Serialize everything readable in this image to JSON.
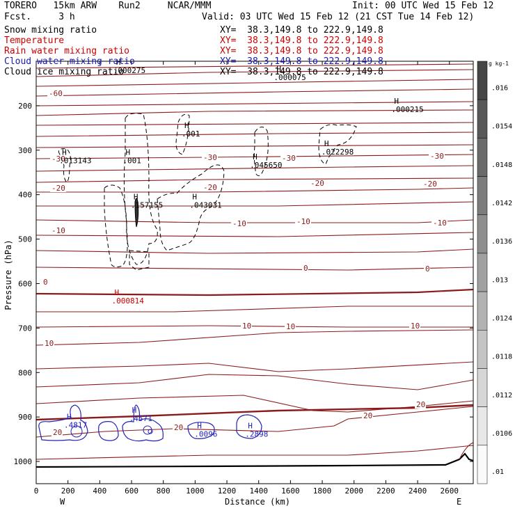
{
  "header": {
    "model": "TORERO   15km ARW    Run2     NCAR/MMM",
    "forecast": "Fcst.     3 h",
    "init": "Init: 00 UTC Wed 15 Feb 12",
    "valid": "Valid: 03 UTC Wed 15 Feb 12 (21 CST Tue 14 Feb 12)"
  },
  "legend": [
    {
      "name": "Snow mixing ratio",
      "xy": "XY=  38.3,149.8 to 222.9,149.8",
      "color": "#000000"
    },
    {
      "name": "Temperature",
      "xy": "XY=  38.3,149.8 to 222.9,149.8",
      "color": "#cc0000"
    },
    {
      "name": "Rain water mixing ratio",
      "xy": "XY=  38.3,149.8 to 222.9,149.8",
      "color": "#cc0000"
    },
    {
      "name": "Cloud water mixing ratio",
      "xy": "XY=  38.3,149.8 to 222.9,149.8",
      "color": "#1a1aaa"
    },
    {
      "name": "Cloud ice mixing ratio",
      "xy": "XY=  38.3,149.8 to 222.9,149.8",
      "color": "#000000"
    }
  ],
  "chart_data": {
    "type": "contour-cross-section",
    "xlabel": "Distance (km)",
    "ylabel": "Pressure (hPa)",
    "xlim": [
      0,
      2750
    ],
    "ylim": [
      1050,
      100
    ],
    "x_ticks": [
      0,
      200,
      400,
      600,
      800,
      1000,
      1200,
      1400,
      1600,
      1800,
      2000,
      2200,
      2400,
      2600
    ],
    "y_ticks": [
      200,
      300,
      400,
      500,
      600,
      700,
      800,
      900,
      1000
    ],
    "x_end_labels": {
      "west": "W",
      "east": "E"
    },
    "temperature_isotherms": [
      {
        "value": -60,
        "label_at_x": 80
      },
      {
        "value": -30,
        "label_at_x": [
          100,
          1060,
          1550,
          2470
        ]
      },
      {
        "value": -20,
        "label_at_x": [
          100,
          1060,
          1720,
          2450
        ]
      },
      {
        "value": -10,
        "label_at_x": [
          100,
          1250,
          1640,
          2490
        ]
      },
      {
        "value": 0,
        "label_at_x": [
          50,
          1680,
          2460
        ]
      },
      {
        "value": 10,
        "label_at_x": [
          60,
          1300,
          1570,
          2350
        ]
      },
      {
        "value": 20,
        "label_at_x": [
          100,
          870,
          2070,
          2390
        ]
      }
    ],
    "maxima_labels": [
      {
        "series": "Snow mixing ratio",
        "value": ".013143",
        "x": 180,
        "p": 320
      },
      {
        "series": "Snow mixing ratio",
        "value": ".001",
        "x": 580,
        "p": 320
      },
      {
        "series": "Snow mixing ratio",
        "value": ".001",
        "x": 950,
        "p": 260
      },
      {
        "series": "Snow mixing ratio",
        "value": ".157155",
        "x": 630,
        "p": 420
      },
      {
        "series": "Snow mixing ratio",
        "value": ".043031",
        "x": 1000,
        "p": 420
      },
      {
        "series": "Snow mixing ratio",
        "value": ".045650",
        "x": 1380,
        "p": 330
      },
      {
        "series": "Snow mixing ratio",
        "value": ".022298",
        "x": 1830,
        "p": 300
      },
      {
        "series": "Cloud ice mixing ratio",
        "value": ".000215",
        "x": 2270,
        "p": 205
      },
      {
        "series": "Cloud ice mixing ratio",
        "value": ".000275",
        "x": 520,
        "p": 117
      },
      {
        "series": "Cloud ice mixing ratio",
        "value": ".000075",
        "x": 1530,
        "p": 133
      },
      {
        "series": "Rain water mixing ratio",
        "value": ".000814",
        "x": 510,
        "p": 635
      },
      {
        "series": "Cloud water mixing ratio",
        "value": ".4817",
        "x": 210,
        "p": 915
      },
      {
        "series": "Cloud water mixing ratio",
        "value": ".4571",
        "x": 620,
        "p": 900
      },
      {
        "series": "Cloud water mixing ratio",
        "value": ".0096",
        "x": 1030,
        "p": 935
      },
      {
        "series": "Cloud water mixing ratio",
        "value": ".2898",
        "x": 1350,
        "p": 935
      }
    ],
    "scale_bar": {
      "unit": "g kg-1",
      "labels": [
        ".016",
        ".0154",
        ".0148",
        ".0142",
        ".0136",
        ".013",
        ".0124",
        ".0118",
        ".0112",
        ".0106",
        ".01"
      ]
    }
  },
  "colors": {
    "temperature": "#8b1a1a",
    "cloud_water": "#2222bb",
    "rain": "#cc0000",
    "terrain": "#000000"
  }
}
